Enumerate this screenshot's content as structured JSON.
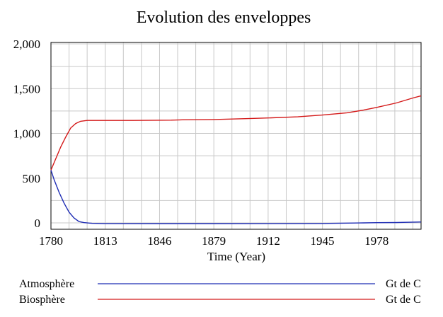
{
  "chart_data": {
    "type": "line",
    "title": "Evolution des enveloppes",
    "xlabel": "Time (Year)",
    "ylabel": "",
    "xlim": [
      1780,
      2005
    ],
    "ylim": [
      -50,
      2000
    ],
    "x_ticks": [
      1780,
      1813,
      1846,
      1879,
      1912,
      1945,
      1978
    ],
    "y_ticks": [
      0,
      500,
      1000,
      1500,
      2000
    ],
    "y_tick_labels": [
      "0",
      "500",
      "1,000",
      "1,500",
      "2,000"
    ],
    "grid": true,
    "series": [
      {
        "name": "Atmosphère",
        "unit": "Gt de C",
        "color": "#1f2db4",
        "points": [
          [
            1780,
            590
          ],
          [
            1782,
            480
          ],
          [
            1785,
            340
          ],
          [
            1788,
            220
          ],
          [
            1791,
            120
          ],
          [
            1794,
            55
          ],
          [
            1797,
            15
          ],
          [
            1800,
            3
          ],
          [
            1805,
            -5
          ],
          [
            1813,
            -7
          ],
          [
            1846,
            -8
          ],
          [
            1879,
            -8
          ],
          [
            1912,
            -7
          ],
          [
            1945,
            -6
          ],
          [
            1970,
            0
          ],
          [
            1978,
            2
          ],
          [
            1990,
            4
          ],
          [
            2005,
            10
          ]
        ]
      },
      {
        "name": "Biosphère",
        "unit": "Gt de C",
        "color": "#d41a1a",
        "points": [
          [
            1780,
            590
          ],
          [
            1783,
            720
          ],
          [
            1786,
            850
          ],
          [
            1789,
            960
          ],
          [
            1792,
            1060
          ],
          [
            1795,
            1110
          ],
          [
            1798,
            1135
          ],
          [
            1802,
            1145
          ],
          [
            1813,
            1145
          ],
          [
            1830,
            1145
          ],
          [
            1853,
            1148
          ],
          [
            1860,
            1152
          ],
          [
            1879,
            1155
          ],
          [
            1900,
            1165
          ],
          [
            1912,
            1172
          ],
          [
            1930,
            1185
          ],
          [
            1945,
            1205
          ],
          [
            1960,
            1230
          ],
          [
            1970,
            1260
          ],
          [
            1978,
            1290
          ],
          [
            1990,
            1340
          ],
          [
            2000,
            1395
          ],
          [
            2005,
            1420
          ]
        ]
      }
    ]
  }
}
